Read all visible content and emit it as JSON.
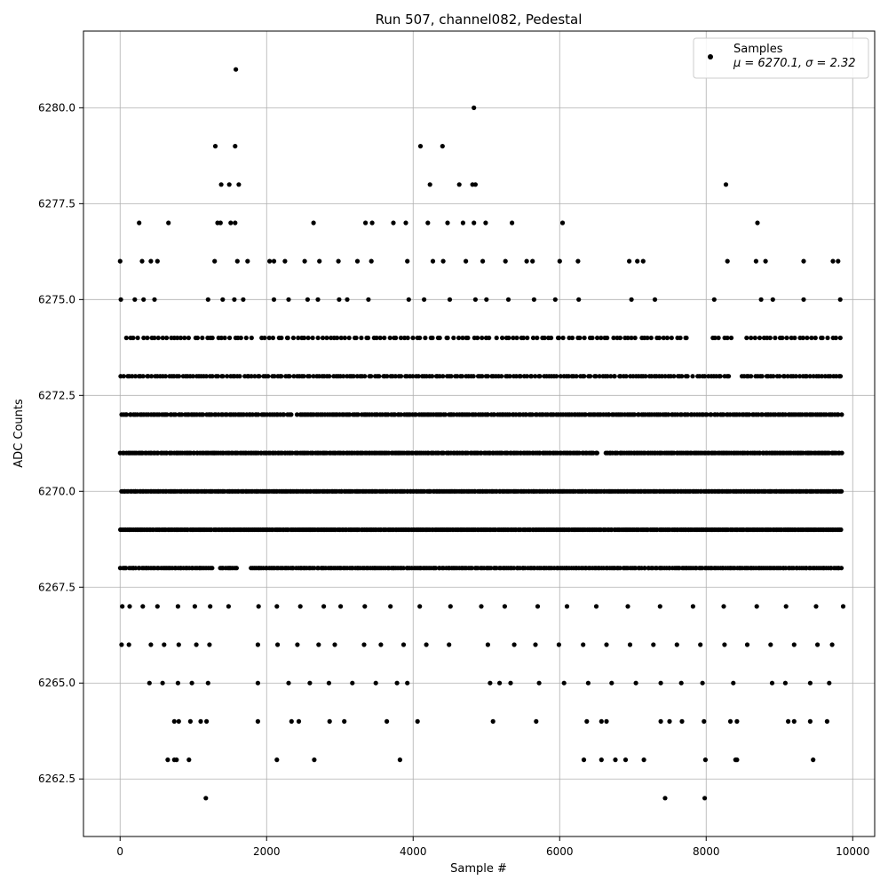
{
  "chart_data": {
    "type": "scatter",
    "title": "Run 507, channel082, Pedestal",
    "xlabel": "Sample #",
    "ylabel": "ADC Counts",
    "xlim": [
      -500,
      10300
    ],
    "ylim": [
      6261,
      6282
    ],
    "grid": true,
    "marker_color": "#000000",
    "xticks": [
      {
        "value": 0,
        "label": "0"
      },
      {
        "value": 2000,
        "label": "2000"
      },
      {
        "value": 4000,
        "label": "4000"
      },
      {
        "value": 6000,
        "label": "6000"
      },
      {
        "value": 8000,
        "label": "8000"
      },
      {
        "value": 10000,
        "label": "10000"
      }
    ],
    "yticks": [
      {
        "value": 6262.5,
        "label": "6262.5"
      },
      {
        "value": 6265.0,
        "label": "6265.0"
      },
      {
        "value": 6267.5,
        "label": "6267.5"
      },
      {
        "value": 6270.0,
        "label": "6270.0"
      },
      {
        "value": 6272.5,
        "label": "6272.5"
      },
      {
        "value": 6275.0,
        "label": "6275.0"
      },
      {
        "value": 6277.5,
        "label": "6277.5"
      },
      {
        "value": 6280.0,
        "label": "6280.0"
      }
    ],
    "legend": {
      "placement": "top-right",
      "label": "Samples",
      "stats": "μ = 6270.1, σ = 2.32"
    },
    "series": [
      {
        "name": "Samples",
        "mean": 6270.1,
        "std": 2.32,
        "points": [
          [
            1580,
            6281
          ],
          [
            4830,
            6280
          ],
          [
            1300,
            6279
          ],
          [
            1570,
            6279
          ],
          [
            4100,
            6279
          ],
          [
            4400,
            6279
          ],
          [
            1380,
            6278
          ],
          [
            1490,
            6278
          ],
          [
            1620,
            6278
          ],
          [
            4230,
            6278
          ],
          [
            4630,
            6278
          ],
          [
            4810,
            6278
          ],
          [
            4850,
            6278
          ],
          [
            8270,
            6278
          ],
          [
            0,
            6276
          ],
          [
            260,
            6277
          ],
          [
            660,
            6277
          ],
          [
            1330,
            6277
          ],
          [
            1370,
            6277
          ],
          [
            1510,
            6277
          ],
          [
            1570,
            6277
          ],
          [
            2640,
            6277
          ],
          [
            3350,
            6277
          ],
          [
            3440,
            6277
          ],
          [
            3730,
            6277
          ],
          [
            3900,
            6277
          ],
          [
            4200,
            6277
          ],
          [
            4470,
            6277
          ],
          [
            4680,
            6277
          ],
          [
            4830,
            6277
          ],
          [
            4990,
            6277
          ],
          [
            5350,
            6277
          ],
          [
            6040,
            6277
          ],
          [
            8700,
            6277
          ],
          [
            300,
            6276
          ],
          [
            420,
            6276
          ],
          [
            510,
            6276
          ],
          [
            1290,
            6276
          ],
          [
            1600,
            6276
          ],
          [
            1740,
            6276
          ],
          [
            2040,
            6276
          ],
          [
            2100,
            6276
          ],
          [
            2250,
            6276
          ],
          [
            2520,
            6276
          ],
          [
            2720,
            6276
          ],
          [
            2980,
            6276
          ],
          [
            3240,
            6276
          ],
          [
            3430,
            6276
          ],
          [
            3920,
            6276
          ],
          [
            4270,
            6276
          ],
          [
            4410,
            6276
          ],
          [
            4720,
            6276
          ],
          [
            4950,
            6276
          ],
          [
            5260,
            6276
          ],
          [
            5550,
            6276
          ],
          [
            5630,
            6276
          ],
          [
            6000,
            6276
          ],
          [
            6250,
            6276
          ],
          [
            6950,
            6276
          ],
          [
            7060,
            6276
          ],
          [
            7140,
            6276
          ],
          [
            8290,
            6276
          ],
          [
            8680,
            6276
          ],
          [
            8810,
            6276
          ],
          [
            9330,
            6276
          ],
          [
            9730,
            6276
          ],
          [
            9800,
            6276
          ],
          [
            10,
            6275
          ],
          [
            200,
            6275
          ],
          [
            320,
            6275
          ],
          [
            470,
            6275
          ],
          [
            1200,
            6275
          ],
          [
            1400,
            6275
          ],
          [
            1560,
            6275
          ],
          [
            1680,
            6275
          ],
          [
            2100,
            6275
          ],
          [
            2300,
            6275
          ],
          [
            2560,
            6275
          ],
          [
            2700,
            6275
          ],
          [
            2990,
            6275
          ],
          [
            3100,
            6275
          ],
          [
            3390,
            6275
          ],
          [
            3940,
            6275
          ],
          [
            4150,
            6275
          ],
          [
            4500,
            6275
          ],
          [
            4850,
            6275
          ],
          [
            5000,
            6275
          ],
          [
            5300,
            6275
          ],
          [
            5650,
            6275
          ],
          [
            5940,
            6275
          ],
          [
            6260,
            6275
          ],
          [
            6980,
            6275
          ],
          [
            7300,
            6275
          ],
          [
            8110,
            6275
          ],
          [
            8750,
            6275
          ],
          [
            8910,
            6275
          ],
          [
            9330,
            6275
          ],
          [
            9830,
            6275
          ],
          [
            30,
            6267
          ],
          [
            130,
            6267
          ],
          [
            310,
            6267
          ],
          [
            510,
            6267
          ],
          [
            790,
            6267
          ],
          [
            1020,
            6267
          ],
          [
            1230,
            6267
          ],
          [
            1480,
            6267
          ],
          [
            1890,
            6267
          ],
          [
            2140,
            6267
          ],
          [
            2460,
            6267
          ],
          [
            2780,
            6267
          ],
          [
            3010,
            6267
          ],
          [
            3340,
            6267
          ],
          [
            3690,
            6267
          ],
          [
            4090,
            6267
          ],
          [
            4510,
            6267
          ],
          [
            4930,
            6267
          ],
          [
            5250,
            6267
          ],
          [
            5700,
            6267
          ],
          [
            6100,
            6267
          ],
          [
            6500,
            6267
          ],
          [
            6930,
            6267
          ],
          [
            7370,
            6267
          ],
          [
            7820,
            6267
          ],
          [
            8240,
            6267
          ],
          [
            8690,
            6267
          ],
          [
            9090,
            6267
          ],
          [
            9500,
            6267
          ],
          [
            9870,
            6267
          ],
          [
            20,
            6266
          ],
          [
            120,
            6266
          ],
          [
            420,
            6266
          ],
          [
            600,
            6266
          ],
          [
            800,
            6266
          ],
          [
            1040,
            6266
          ],
          [
            1220,
            6266
          ],
          [
            1880,
            6266
          ],
          [
            2150,
            6266
          ],
          [
            2420,
            6266
          ],
          [
            2710,
            6266
          ],
          [
            2930,
            6266
          ],
          [
            3330,
            6266
          ],
          [
            3560,
            6266
          ],
          [
            3870,
            6266
          ],
          [
            4180,
            6266
          ],
          [
            4490,
            6266
          ],
          [
            5020,
            6266
          ],
          [
            5380,
            6266
          ],
          [
            5670,
            6266
          ],
          [
            5990,
            6266
          ],
          [
            6320,
            6266
          ],
          [
            6640,
            6266
          ],
          [
            6960,
            6266
          ],
          [
            7280,
            6266
          ],
          [
            7600,
            6266
          ],
          [
            7920,
            6266
          ],
          [
            8250,
            6266
          ],
          [
            8560,
            6266
          ],
          [
            8880,
            6266
          ],
          [
            9200,
            6266
          ],
          [
            9520,
            6266
          ],
          [
            9720,
            6266
          ],
          [
            400,
            6265
          ],
          [
            580,
            6265
          ],
          [
            790,
            6265
          ],
          [
            980,
            6265
          ],
          [
            1200,
            6265
          ],
          [
            1880,
            6265
          ],
          [
            2300,
            6265
          ],
          [
            2590,
            6265
          ],
          [
            2850,
            6265
          ],
          [
            3170,
            6265
          ],
          [
            3490,
            6265
          ],
          [
            3780,
            6265
          ],
          [
            3920,
            6265
          ],
          [
            5050,
            6265
          ],
          [
            5180,
            6265
          ],
          [
            5330,
            6265
          ],
          [
            5720,
            6265
          ],
          [
            6060,
            6265
          ],
          [
            6390,
            6265
          ],
          [
            6710,
            6265
          ],
          [
            7040,
            6265
          ],
          [
            7380,
            6265
          ],
          [
            7660,
            6265
          ],
          [
            7950,
            6265
          ],
          [
            8370,
            6265
          ],
          [
            8900,
            6265
          ],
          [
            9080,
            6265
          ],
          [
            9420,
            6265
          ],
          [
            9680,
            6265
          ],
          [
            740,
            6264
          ],
          [
            800,
            6264
          ],
          [
            960,
            6264
          ],
          [
            1100,
            6264
          ],
          [
            1180,
            6264
          ],
          [
            1880,
            6264
          ],
          [
            2340,
            6264
          ],
          [
            2440,
            6264
          ],
          [
            2860,
            6264
          ],
          [
            3060,
            6264
          ],
          [
            3640,
            6264
          ],
          [
            4060,
            6264
          ],
          [
            5090,
            6264
          ],
          [
            5680,
            6264
          ],
          [
            6370,
            6264
          ],
          [
            6570,
            6264
          ],
          [
            6640,
            6264
          ],
          [
            7380,
            6264
          ],
          [
            7500,
            6264
          ],
          [
            7670,
            6264
          ],
          [
            7970,
            6264
          ],
          [
            8330,
            6264
          ],
          [
            8420,
            6264
          ],
          [
            9120,
            6264
          ],
          [
            9200,
            6264
          ],
          [
            9420,
            6264
          ],
          [
            9650,
            6264
          ],
          [
            650,
            6263
          ],
          [
            740,
            6263
          ],
          [
            770,
            6263
          ],
          [
            940,
            6263
          ],
          [
            2140,
            6263
          ],
          [
            2650,
            6263
          ],
          [
            3820,
            6263
          ],
          [
            6330,
            6263
          ],
          [
            6570,
            6263
          ],
          [
            6760,
            6263
          ],
          [
            6900,
            6263
          ],
          [
            7150,
            6263
          ],
          [
            7990,
            6263
          ],
          [
            8400,
            6263
          ],
          [
            8420,
            6263
          ],
          [
            9460,
            6263
          ],
          [
            1170,
            6262
          ],
          [
            7440,
            6262
          ],
          [
            7980,
            6262
          ]
        ],
        "dense_levels": [
          {
            "value": 6274,
            "count": 180,
            "start": 60,
            "end": 9850,
            "gaps": [
              [
                1800,
                1880
              ],
              [
                5060,
                5120
              ],
              [
                7780,
                8080
              ],
              [
                8400,
                8520
              ]
            ]
          },
          {
            "value": 6273,
            "count": 260,
            "start": 0,
            "end": 9860,
            "gaps": [
              [
                7770,
                7810
              ],
              [
                8320,
                8420
              ]
            ]
          },
          {
            "value": 6272,
            "count": 340,
            "start": 0,
            "end": 9860,
            "gaps": [
              [
                2340,
                2400
              ]
            ]
          },
          {
            "value": 6271,
            "count": 420,
            "start": 0,
            "end": 9860,
            "gaps": [
              [
                6520,
                6600
              ]
            ]
          },
          {
            "value": 6270,
            "count": 470,
            "start": 0,
            "end": 9860,
            "gaps": []
          },
          {
            "value": 6269,
            "count": 460,
            "start": 0,
            "end": 9860,
            "gaps": []
          },
          {
            "value": 6268,
            "count": 380,
            "start": 0,
            "end": 9860,
            "gaps": [
              [
                1270,
                1350
              ],
              [
                1600,
                1750
              ]
            ]
          }
        ]
      }
    ]
  }
}
